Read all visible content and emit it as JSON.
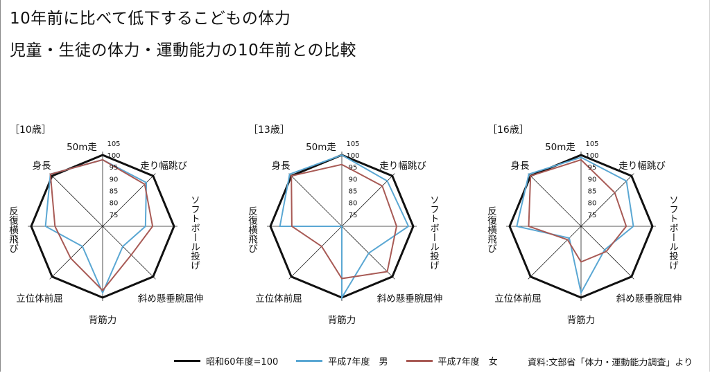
{
  "title": "10年前に比べて低下するこどもの体力",
  "subtitle": "児童・生徒の体力・運動能力の10年前との比較",
  "source": "資料:文部省「体力・運動能力調査」より",
  "colors": {
    "baseline": "#111111",
    "male": "#5aa7d3",
    "female": "#a85a55"
  },
  "legend": [
    {
      "label": "昭和60年度=100",
      "color": "#111111"
    },
    {
      "label": "平成7年度　男",
      "color": "#5aa7d3"
    },
    {
      "label": "平成7年度　女",
      "color": "#a85a55"
    }
  ],
  "chart_data": [
    {
      "type": "radar",
      "title": "［10歳］",
      "axes": [
        "50m走",
        "走り幅跳び",
        "ソフトボール投げ",
        "斜め懸垂腕屈伸",
        "背筋力",
        "立位体前屈",
        "反復横飛び",
        "身長"
      ],
      "scale_ticks": [
        "105",
        "100",
        "95",
        "90",
        "85",
        "80",
        "75"
      ],
      "rmin": 70,
      "rmax": 105,
      "series": [
        {
          "name": "昭和60年度=100",
          "values": [
            100,
            100,
            100,
            100,
            100,
            100,
            100,
            100
          ]
        },
        {
          "name": "平成7年度　男",
          "values": [
            98,
            96,
            88,
            82,
            98,
            82,
            94,
            101
          ]
        },
        {
          "name": "平成7年度　女",
          "values": [
            98,
            95,
            91,
            87,
            97,
            89,
            90,
            101
          ]
        }
      ]
    },
    {
      "type": "radar",
      "title": "［13歳］",
      "axes": [
        "50m走",
        "走り幅跳び",
        "ソフトボール投げ",
        "斜め懸垂腕屈伸",
        "背筋力",
        "立位体前屈",
        "反復横飛び",
        "身長"
      ],
      "scale_ticks": [
        "105",
        "100",
        "95",
        "90",
        "85",
        "80",
        "75"
      ],
      "rmin": 70,
      "rmax": 105,
      "series": [
        {
          "name": "昭和60年度=100",
          "values": [
            100,
            100,
            100,
            100,
            100,
            100,
            100,
            100
          ]
        },
        {
          "name": "平成7年度　男",
          "values": [
            100,
            97,
            98,
            86,
            100,
            70,
            96,
            101
          ]
        },
        {
          "name": "平成7年度　女",
          "values": [
            96,
            94,
            93,
            97,
            92,
            82,
            91,
            100
          ]
        }
      ]
    },
    {
      "type": "radar",
      "title": "［16歳］",
      "axes": [
        "50m走",
        "走り幅跳び",
        "ソフトボール投げ",
        "斜め懸垂腕屈伸",
        "背筋力",
        "立位体前屈",
        "反復横飛び",
        "身長"
      ],
      "scale_ticks": [
        "105",
        "100",
        "95",
        "90",
        "85",
        "80",
        "75"
      ],
      "rmin": 70,
      "rmax": 105,
      "series": [
        {
          "name": "昭和60年度=100",
          "values": [
            100,
            100,
            100,
            100,
            100,
            100,
            100,
            100
          ]
        },
        {
          "name": "平成7年度　男",
          "values": [
            99,
            97,
            92,
            84,
            98,
            77,
            97,
            101
          ]
        },
        {
          "name": "平成7年度　女",
          "values": [
            98,
            90,
            89,
            85,
            85,
            78,
            92,
            100
          ]
        }
      ]
    }
  ]
}
